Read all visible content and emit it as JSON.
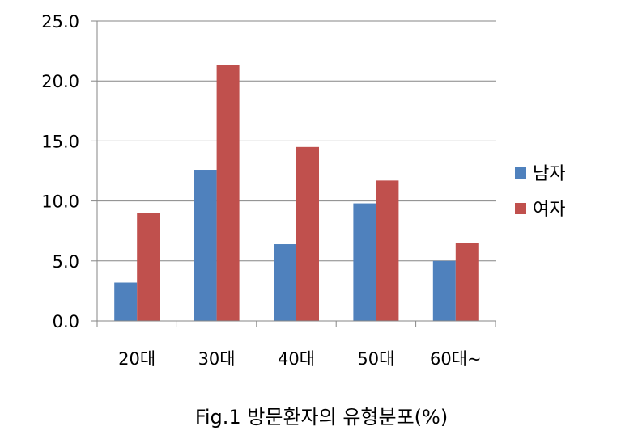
{
  "chart_data": {
    "type": "bar",
    "title": "",
    "caption": "Fig.1 방문환자의 유형분포(%)",
    "xlabel": "",
    "ylabel": "",
    "categories": [
      "20대",
      "30대",
      "40대",
      "50대",
      "60대~"
    ],
    "series": [
      {
        "name": "남자",
        "color": "#4F81BD",
        "values": [
          3.2,
          12.6,
          6.4,
          9.8,
          5.0
        ]
      },
      {
        "name": "여자",
        "color": "#C0504D",
        "values": [
          9.0,
          21.3,
          14.5,
          11.7,
          6.5
        ]
      }
    ],
    "ylim": [
      0,
      25
    ],
    "yticks": [
      "0.0",
      "5.0",
      "10.0",
      "15.0",
      "20.0",
      "25.0"
    ],
    "grid": true,
    "legend_position": "right"
  }
}
